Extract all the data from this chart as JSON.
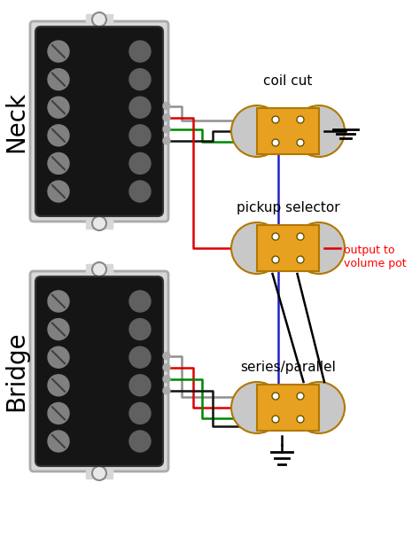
{
  "bg_color": "#ffffff",
  "neck_label": "Neck",
  "bridge_label": "Bridge",
  "coil_cut_label": "coil cut",
  "pickup_selector_label": "pickup selector",
  "series_parallel_label": "series/parallel",
  "output_label": "output to\nvolume pot",
  "switch_orange": "#E8A020",
  "switch_border": "#b07800",
  "switch_bump": "#c8c8c8",
  "wire_gray": "#909090",
  "wire_red": "#dd0000",
  "wire_green": "#008800",
  "wire_blue": "#2222cc",
  "wire_black": "#111111"
}
